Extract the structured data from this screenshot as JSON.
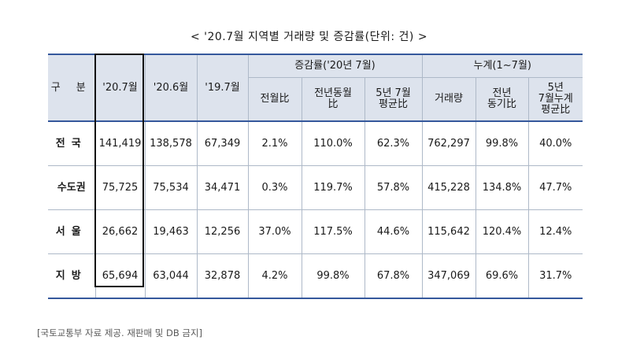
{
  "title": "< '20.7월 지역별 거래량 및 증감률(단위: 건) >",
  "table": {
    "header": {
      "group": "구 분",
      "col_2007": "'20.7월",
      "col_2006": "'20.6월",
      "col_1907": "'19.7월",
      "change_group": "증감률('20년 7월)",
      "cumulative_group": "누계(1~7월)",
      "mom": "전월比",
      "yoy_line1": "전년동월",
      "yoy_line2": "比",
      "avg5_line1": "5년 7월",
      "avg5_line2": "평균比",
      "cum_volume": "거래량",
      "cum_yoy_line1": "전년",
      "cum_yoy_line2": "동기比",
      "cum_avg5_line1": "5년",
      "cum_avg5_line2": "7월누계",
      "cum_avg5_line3": "평균比"
    },
    "rows": [
      {
        "region": "전국",
        "v2007": "141,419",
        "v2006": "138,578",
        "v1907": "67,349",
        "mom": "2.1%",
        "yoy": "110.0%",
        "avg5": "62.3%",
        "cum": "762,297",
        "cum_yoy": "99.8%",
        "cum_avg5": "40.0%"
      },
      {
        "region": "수도권",
        "v2007": "75,725",
        "v2006": "75,534",
        "v1907": "34,471",
        "mom": "0.3%",
        "yoy": "119.7%",
        "avg5": "57.8%",
        "cum": "415,228",
        "cum_yoy": "134.8%",
        "cum_avg5": "47.7%"
      },
      {
        "region": "서울",
        "v2007": "26,662",
        "v2006": "19,463",
        "v1907": "12,256",
        "mom": "37.0%",
        "yoy": "117.5%",
        "avg5": "44.6%",
        "cum": "115,642",
        "cum_yoy": "120.4%",
        "cum_avg5": "12.4%"
      },
      {
        "region": "지방",
        "v2007": "65,694",
        "v2006": "63,044",
        "v1907": "32,878",
        "mom": "4.2%",
        "yoy": "99.8%",
        "avg5": "67.8%",
        "cum": "347,069",
        "cum_yoy": "69.6%",
        "cum_avg5": "31.7%"
      }
    ]
  },
  "source": "[국토교통부 자료 제공. 재판매 및 DB 금지]"
}
